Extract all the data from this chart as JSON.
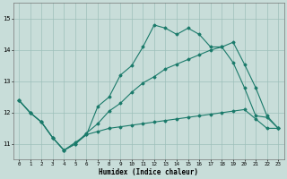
{
  "xlabel": "Humidex (Indice chaleur)",
  "xlim": [
    -0.5,
    23.5
  ],
  "ylim": [
    10.5,
    15.5
  ],
  "yticks": [
    11,
    12,
    13,
    14,
    15
  ],
  "xticks": [
    0,
    1,
    2,
    3,
    4,
    5,
    6,
    7,
    8,
    9,
    10,
    11,
    12,
    13,
    14,
    15,
    16,
    17,
    18,
    19,
    20,
    21,
    22,
    23
  ],
  "background_color": "#c8ddd9",
  "grid_color": "#9dbfba",
  "line_color": "#1a7a6a",
  "line1_x": [
    0,
    1,
    2,
    3,
    4,
    5,
    6,
    7,
    8,
    9,
    10,
    11,
    12,
    13,
    14,
    15,
    16,
    17,
    18,
    19,
    20,
    21,
    22,
    23
  ],
  "line1_y": [
    12.4,
    12.0,
    11.7,
    11.2,
    10.8,
    11.0,
    11.3,
    12.2,
    12.5,
    13.2,
    13.5,
    14.1,
    14.8,
    14.7,
    14.5,
    14.7,
    14.5,
    14.1,
    14.1,
    13.6,
    12.8,
    11.9,
    11.85,
    11.5
  ],
  "line2_x": [
    0,
    1,
    2,
    3,
    4,
    5,
    6,
    7,
    8,
    9,
    10,
    11,
    12,
    13,
    14,
    15,
    16,
    17,
    18,
    19,
    20,
    21,
    22,
    23
  ],
  "line2_y": [
    12.4,
    12.0,
    11.7,
    11.2,
    10.8,
    11.0,
    11.35,
    11.65,
    12.05,
    12.3,
    12.65,
    12.95,
    13.15,
    13.4,
    13.55,
    13.7,
    13.85,
    14.0,
    14.1,
    14.25,
    13.55,
    12.8,
    11.9,
    11.5
  ],
  "line3_x": [
    0,
    1,
    2,
    3,
    4,
    5,
    6,
    7,
    8,
    9,
    10,
    11,
    12,
    13,
    14,
    15,
    16,
    17,
    18,
    19,
    20,
    21,
    22,
    23
  ],
  "line3_y": [
    12.4,
    12.0,
    11.7,
    11.2,
    10.8,
    11.05,
    11.3,
    11.4,
    11.5,
    11.55,
    11.6,
    11.65,
    11.7,
    11.75,
    11.8,
    11.85,
    11.9,
    11.95,
    12.0,
    12.05,
    12.1,
    11.8,
    11.5,
    11.5
  ]
}
